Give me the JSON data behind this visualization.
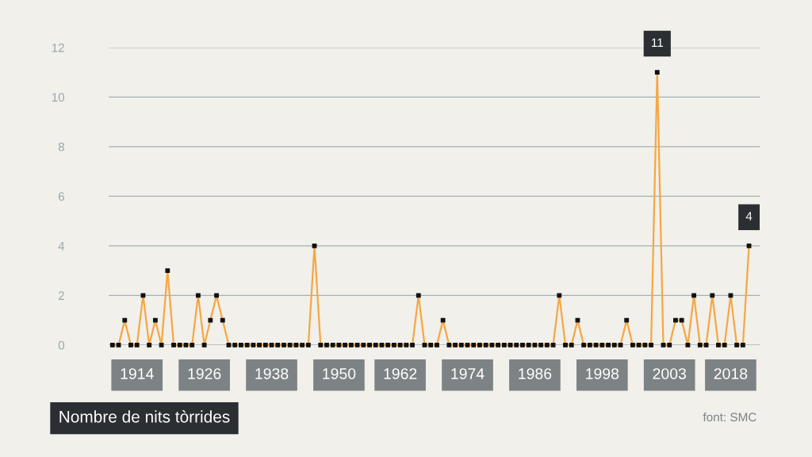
{
  "chart_data": {
    "type": "line",
    "title": "Nombre de nits tòrrides",
    "categories": [
      null,
      null,
      null,
      null,
      "1914",
      null,
      null,
      null,
      null,
      null,
      null,
      null,
      null,
      null,
      null,
      "1926",
      null,
      null,
      null,
      null,
      null,
      null,
      null,
      null,
      null,
      null,
      "1938",
      null,
      null,
      null,
      null,
      null,
      null,
      null,
      null,
      null,
      null,
      "1950",
      null,
      null,
      null,
      null,
      null,
      null,
      null,
      null,
      null,
      "1962",
      null,
      null,
      null,
      null,
      null,
      null,
      null,
      null,
      null,
      null,
      "1974",
      null,
      null,
      null,
      null,
      null,
      null,
      null,
      null,
      null,
      null,
      "1986",
      null,
      null,
      null,
      null,
      null,
      null,
      null,
      null,
      null,
      null,
      "1998",
      null,
      null,
      null,
      null,
      null,
      null,
      null,
      null,
      null,
      null,
      "2003",
      null,
      null,
      null,
      null,
      null,
      null,
      null,
      null,
      null,
      "2018",
      null,
      null,
      null
    ],
    "series": [
      {
        "color": "#f5a744",
        "values": [
          0,
          0,
          1,
          0,
          0,
          2,
          0,
          1,
          0,
          3,
          0,
          0,
          0,
          0,
          2,
          0,
          1,
          2,
          1,
          0,
          0,
          0,
          0,
          0,
          0,
          0,
          0,
          0,
          0,
          0,
          0,
          0,
          0,
          4,
          0,
          0,
          0,
          0,
          0,
          0,
          0,
          0,
          0,
          0,
          0,
          0,
          0,
          0,
          0,
          0,
          2,
          0,
          0,
          0,
          1,
          0,
          0,
          0,
          0,
          0,
          0,
          0,
          0,
          0,
          0,
          0,
          0,
          0,
          0,
          0,
          0,
          0,
          0,
          2,
          0,
          0,
          1,
          0,
          0,
          0,
          0,
          0,
          0,
          0,
          1,
          0,
          0,
          0,
          0,
          11,
          0,
          0,
          1,
          1,
          0,
          2,
          0,
          0,
          2,
          0,
          0,
          2,
          0,
          0,
          4
        ],
        "value_labels": [
          null,
          null,
          null,
          null,
          null,
          null,
          null,
          null,
          null,
          null,
          null,
          null,
          null,
          null,
          null,
          null,
          null,
          null,
          null,
          null,
          null,
          null,
          null,
          null,
          null,
          null,
          null,
          null,
          null,
          null,
          null,
          null,
          null,
          null,
          null,
          null,
          null,
          null,
          null,
          null,
          null,
          null,
          null,
          null,
          null,
          null,
          null,
          null,
          null,
          null,
          null,
          null,
          null,
          null,
          null,
          null,
          null,
          null,
          null,
          null,
          null,
          null,
          null,
          null,
          null,
          null,
          null,
          null,
          null,
          null,
          null,
          null,
          null,
          null,
          null,
          null,
          null,
          null,
          null,
          null,
          null,
          null,
          null,
          null,
          null,
          null,
          null,
          null,
          null,
          "11",
          null,
          null,
          null,
          null,
          null,
          null,
          null,
          null,
          null,
          null,
          null,
          null,
          null,
          null,
          "4"
        ]
      }
    ],
    "ylim": [
      0,
      12
    ],
    "yticks": [
      0,
      2,
      4,
      6,
      8,
      10,
      12
    ],
    "grid": "y",
    "marker": "square",
    "line_style": "solid",
    "legend": false,
    "annotations": [
      "font: SMC"
    ]
  }
}
